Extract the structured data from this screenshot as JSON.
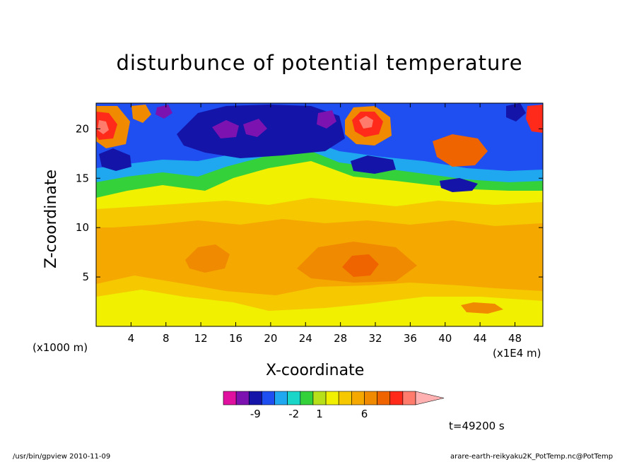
{
  "chart_data": {
    "type": "heatmap",
    "title": "disturbunce of potential temperature",
    "xlabel": "X-coordinate",
    "ylabel": "Z-coordinate",
    "x_unit_left": "(x1000 m)",
    "x_unit_right": "(x1E4 m)",
    "xlim": [
      0,
      51.2
    ],
    "ylim": [
      0,
      22.6
    ],
    "x_ticks": [
      4,
      8,
      12,
      16,
      20,
      24,
      28,
      32,
      36,
      40,
      44,
      48
    ],
    "y_ticks": [
      5,
      10,
      15,
      20
    ],
    "colorbar": {
      "colors": [
        "#e0119e",
        "#7c12b0",
        "#1414a8",
        "#1f4ff0",
        "#1fa8f0",
        "#19d6c8",
        "#34d13a",
        "#b8e01a",
        "#f0f000",
        "#f5c800",
        "#f5a800",
        "#f08a00",
        "#f06400",
        "#ff2a1a",
        "#ff7c6c",
        "#ffb0b0"
      ],
      "tick_labels": [
        "-9",
        "-2",
        "1",
        "6"
      ]
    },
    "approx_field": [
      {
        "z_range": [
          0,
          3
        ],
        "level": "yellow-orange, near 0 to 1"
      },
      {
        "z_range": [
          3,
          11
        ],
        "level": "orange band, about 2 to 4, peak about 6 near x = 20 and x = 32"
      },
      {
        "z_range": [
          11,
          15
        ],
        "level": "light orange to yellow, about 0 to 1"
      },
      {
        "z_range": [
          15,
          22.6
        ],
        "level": "strong negative cells (about -9) near x = 12 to 28, positive red cells near x = 0 to 3, 30 to 34 and 50"
      }
    ]
  },
  "annotations": {
    "time": "t=49200 s",
    "footer_left": "/usr/bin/gpview   2010-11-09",
    "footer_right": "arare-earth-reikyaku2K_PotTemp.nc@PotTemp"
  }
}
